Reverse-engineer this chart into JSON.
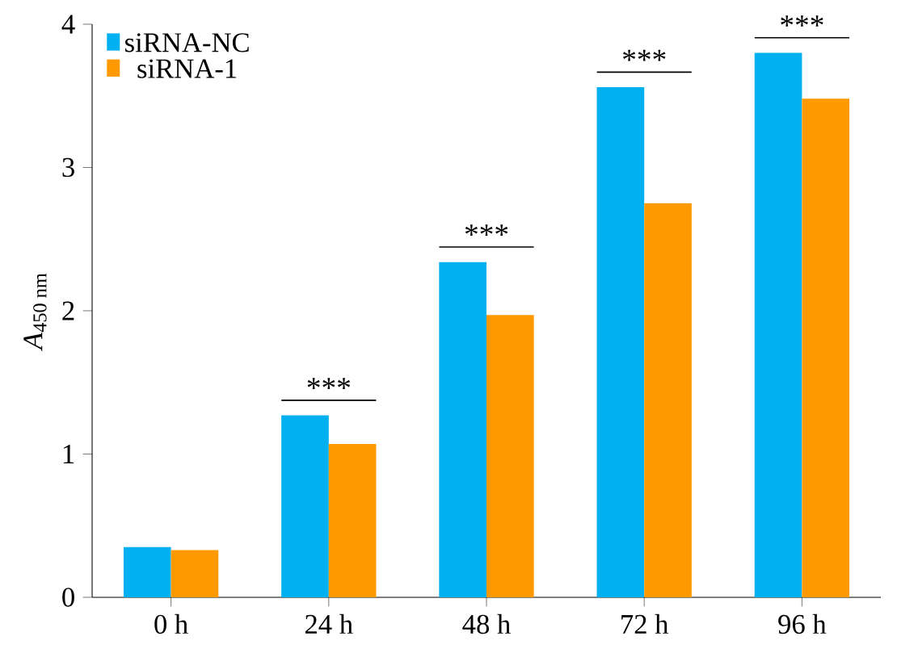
{
  "chart_data": {
    "type": "bar",
    "ylabel": "*A*$_{450 nm}$",
    "categories": [
      "0 h",
      "24 h",
      "48 h",
      "72 h",
      "96 h"
    ],
    "series": [
      {
        "name": "siRNA-NC",
        "color": "#00b0f0",
        "values": [
          0.35,
          1.27,
          2.34,
          3.56,
          3.8
        ]
      },
      {
        "name": "siRNA-1",
        "color": "#ff9900",
        "values": [
          0.33,
          1.07,
          1.97,
          2.75,
          3.48
        ]
      }
    ],
    "ylim": [
      0,
      4
    ],
    "yticks": [
      0,
      1,
      2,
      3,
      4
    ],
    "legend": "top left",
    "annotations": [
      "***",
      "***",
      "***",
      "***"
    ]
  }
}
